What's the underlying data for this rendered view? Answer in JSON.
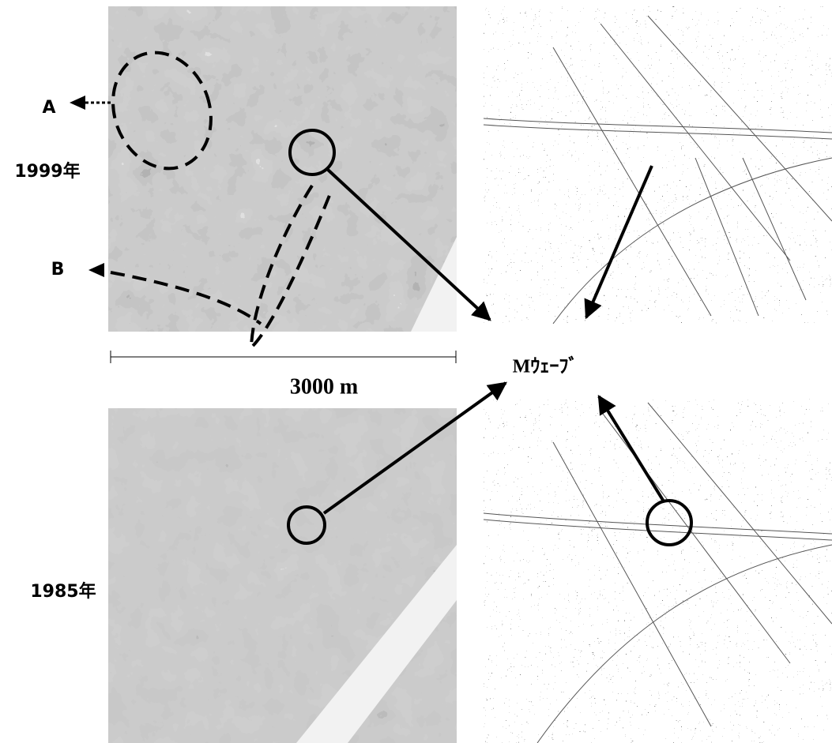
{
  "labels": {
    "a": "A",
    "b": "B",
    "year_top": "1999年",
    "year_bottom": "1985年",
    "scale": "3000 m",
    "feature": "Mｳｪｰﾌﾞ"
  }
}
